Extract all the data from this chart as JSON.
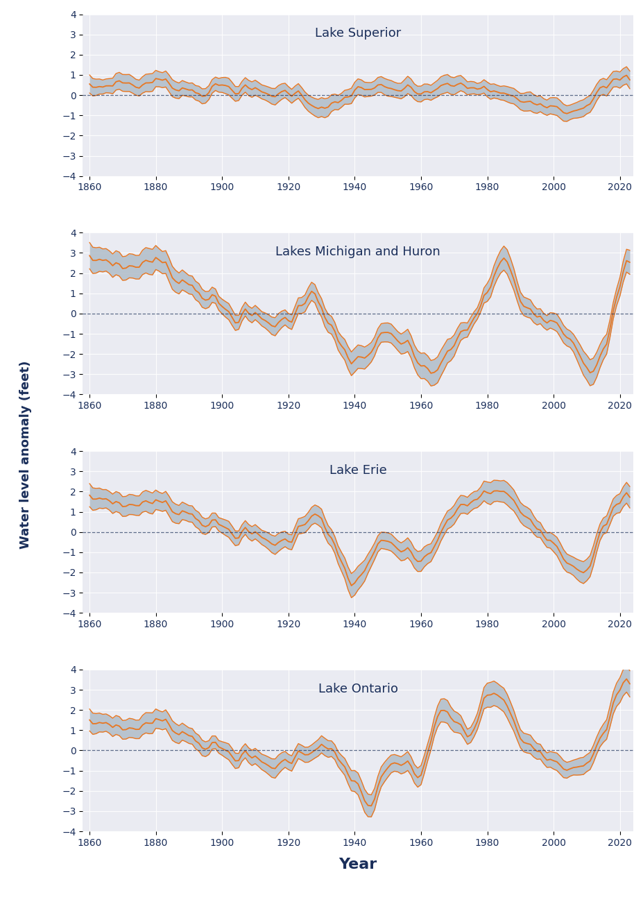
{
  "titles": [
    "Lake Superior",
    "Lakes Michigan and Huron",
    "Lake Erie",
    "Lake Ontario"
  ],
  "ylabel": "Water level anomaly (feet)",
  "xlabel": "Year",
  "ylim": [
    -4,
    4
  ],
  "yticks": [
    -4,
    -3,
    -2,
    -1,
    0,
    1,
    2,
    3,
    4
  ],
  "xticks": [
    1860,
    1880,
    1900,
    1920,
    1940,
    1960,
    1980,
    2000,
    2020
  ],
  "bg_color": "#eaebf2",
  "line_color": "#e87722",
  "fill_color": "#b0bcc8",
  "dashed_color": "#1a2e5a",
  "title_color": "#1a2e5a",
  "axis_color": "#1a2e5a",
  "figsize": [
    9.28,
    13.1
  ],
  "dpi": 100
}
